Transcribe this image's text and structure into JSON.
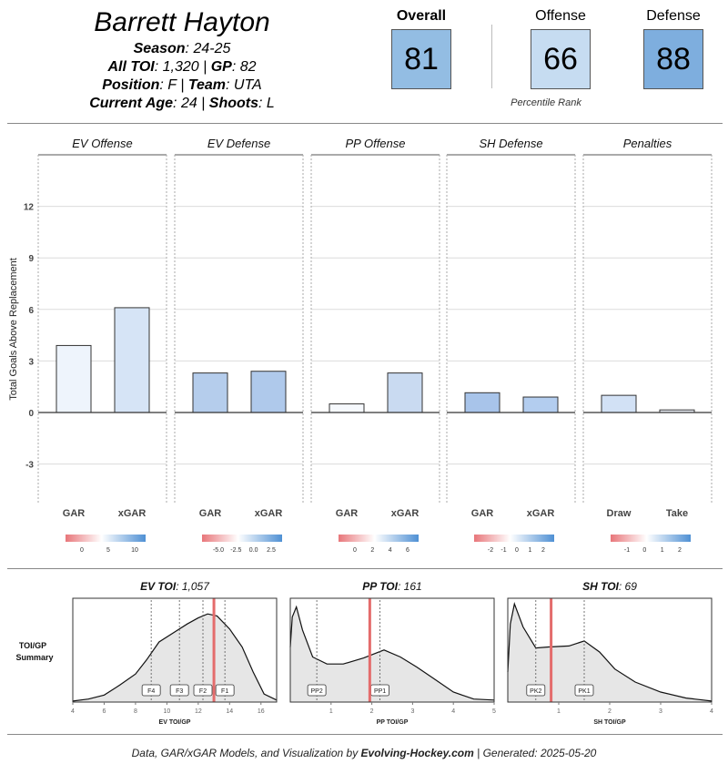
{
  "player": {
    "name": "Barrett Hayton",
    "season_label": "Season",
    "season": "24-25",
    "toi_label": "All TOI",
    "toi": "1,320",
    "gp_label": "GP",
    "gp": "82",
    "position_label": "Position",
    "position": "F",
    "team_label": "Team",
    "team": "UTA",
    "age_label": "Current Age",
    "age": "24",
    "shoots_label": "Shoots",
    "shoots": "L"
  },
  "scores": {
    "overall_label": "Overall",
    "overall": "81",
    "offense_label": "Offense",
    "offense": "66",
    "defense_label": "Defense",
    "defense": "88",
    "percentile_label": "Percentile Rank",
    "colors": {
      "overall": "#93bde3",
      "offense": "#c6dcf1",
      "defense": "#7eaede"
    }
  },
  "chart_data": [
    {
      "type": "bar",
      "ylabel": "Total Goals Above Replacement",
      "ylim": [
        -5.3,
        15
      ],
      "yticks": [
        -3,
        0,
        3,
        6,
        9,
        12
      ],
      "grid": true,
      "panels": [
        {
          "title": "EV Offense",
          "categories": [
            "GAR",
            "xGAR"
          ],
          "values": [
            3.9,
            6.1
          ],
          "colors": [
            "#eef4fc",
            "#d6e4f6"
          ],
          "scale": {
            "ticks": [
              "0",
              "5",
              "10"
            ]
          }
        },
        {
          "title": "EV Defense",
          "categories": [
            "GAR",
            "xGAR"
          ],
          "values": [
            2.3,
            2.4
          ],
          "colors": [
            "#b5cdec",
            "#afc9eb"
          ],
          "scale": {
            "ticks": [
              "-5.0",
              "-2.5",
              "0.0",
              "2.5"
            ]
          }
        },
        {
          "title": "PP Offense",
          "categories": [
            "GAR",
            "xGAR"
          ],
          "values": [
            0.5,
            2.3
          ],
          "colors": [
            "#f6f9fd",
            "#c9daf1"
          ],
          "scale": {
            "ticks": [
              "0",
              "2",
              "4",
              "6"
            ]
          }
        },
        {
          "title": "SH Defense",
          "categories": [
            "GAR",
            "xGAR"
          ],
          "values": [
            1.15,
            0.9
          ],
          "colors": [
            "#a8c4ea",
            "#b3cdef"
          ],
          "scale": {
            "ticks": [
              "-2",
              "-1",
              "0",
              "1",
              "2"
            ]
          }
        },
        {
          "title": "Penalties",
          "categories": [
            "Draw",
            "Take"
          ],
          "values": [
            1.0,
            0.15
          ],
          "colors": [
            "#d2e1f5",
            "#eef3fa"
          ],
          "scale": {
            "ticks": [
              "-1",
              "0",
              "1",
              "2"
            ]
          }
        }
      ]
    },
    {
      "type": "area",
      "summary_label_line1": "TOI/GP",
      "summary_label_line2": "Summary",
      "panels": [
        {
          "title_label": "EV TOI",
          "title_value": "1,057",
          "xlabel": "EV TOI/GP",
          "xlim": [
            4,
            17
          ],
          "xticks": [
            4,
            6,
            8,
            10,
            12,
            14,
            16
          ],
          "player_value": 13.0,
          "density": [
            [
              4,
              0.01
            ],
            [
              5,
              0.03
            ],
            [
              6,
              0.07
            ],
            [
              7,
              0.17
            ],
            [
              8,
              0.28
            ],
            [
              8.7,
              0.42
            ],
            [
              9.5,
              0.6
            ],
            [
              10.5,
              0.7
            ],
            [
              11.3,
              0.78
            ],
            [
              12,
              0.84
            ],
            [
              12.6,
              0.88
            ],
            [
              13.2,
              0.86
            ],
            [
              14,
              0.73
            ],
            [
              14.8,
              0.55
            ],
            [
              15.5,
              0.3
            ],
            [
              16.2,
              0.08
            ],
            [
              17,
              0.02
            ]
          ],
          "refs": [
            {
              "label": "F4",
              "x": 9.0
            },
            {
              "label": "F3",
              "x": 10.8
            },
            {
              "label": "F2",
              "x": 12.3
            },
            {
              "label": "F1",
              "x": 13.7
            }
          ]
        },
        {
          "title_label": "PP TOI",
          "title_value": "161",
          "xlabel": "PP TOI/GP",
          "xlim": [
            0,
            5
          ],
          "xticks": [
            1,
            2,
            3,
            4,
            5
          ],
          "player_value": 1.95,
          "density": [
            [
              0,
              0.55
            ],
            [
              0.05,
              0.85
            ],
            [
              0.15,
              0.95
            ],
            [
              0.3,
              0.72
            ],
            [
              0.55,
              0.45
            ],
            [
              0.9,
              0.38
            ],
            [
              1.3,
              0.38
            ],
            [
              1.8,
              0.44
            ],
            [
              2.3,
              0.52
            ],
            [
              2.7,
              0.45
            ],
            [
              3.1,
              0.35
            ],
            [
              3.5,
              0.24
            ],
            [
              4.0,
              0.1
            ],
            [
              4.5,
              0.03
            ],
            [
              5,
              0.02
            ]
          ],
          "refs": [
            {
              "label": "PP2",
              "x": 0.65
            },
            {
              "label": "PP1",
              "x": 2.2
            }
          ]
        },
        {
          "title_label": "SH TOI",
          "title_value": "69",
          "xlabel": "SH TOI/GP",
          "xlim": [
            0,
            4
          ],
          "xticks": [
            1,
            2,
            3,
            4
          ],
          "player_value": 0.85,
          "density": [
            [
              0,
              0.3
            ],
            [
              0.05,
              0.78
            ],
            [
              0.13,
              0.98
            ],
            [
              0.3,
              0.75
            ],
            [
              0.55,
              0.54
            ],
            [
              0.8,
              0.55
            ],
            [
              1.2,
              0.56
            ],
            [
              1.5,
              0.61
            ],
            [
              1.8,
              0.5
            ],
            [
              2.1,
              0.33
            ],
            [
              2.5,
              0.2
            ],
            [
              3,
              0.1
            ],
            [
              3.5,
              0.04
            ],
            [
              4,
              0.01
            ]
          ],
          "refs": [
            {
              "label": "PK2",
              "x": 0.55
            },
            {
              "label": "PK1",
              "x": 1.5
            }
          ]
        }
      ]
    }
  ],
  "footer": {
    "prefix": "Data, GAR/xGAR Models, and Visualization by ",
    "site": "Evolving-Hockey.com",
    "suffix": " | Generated: 2025-05-20"
  }
}
